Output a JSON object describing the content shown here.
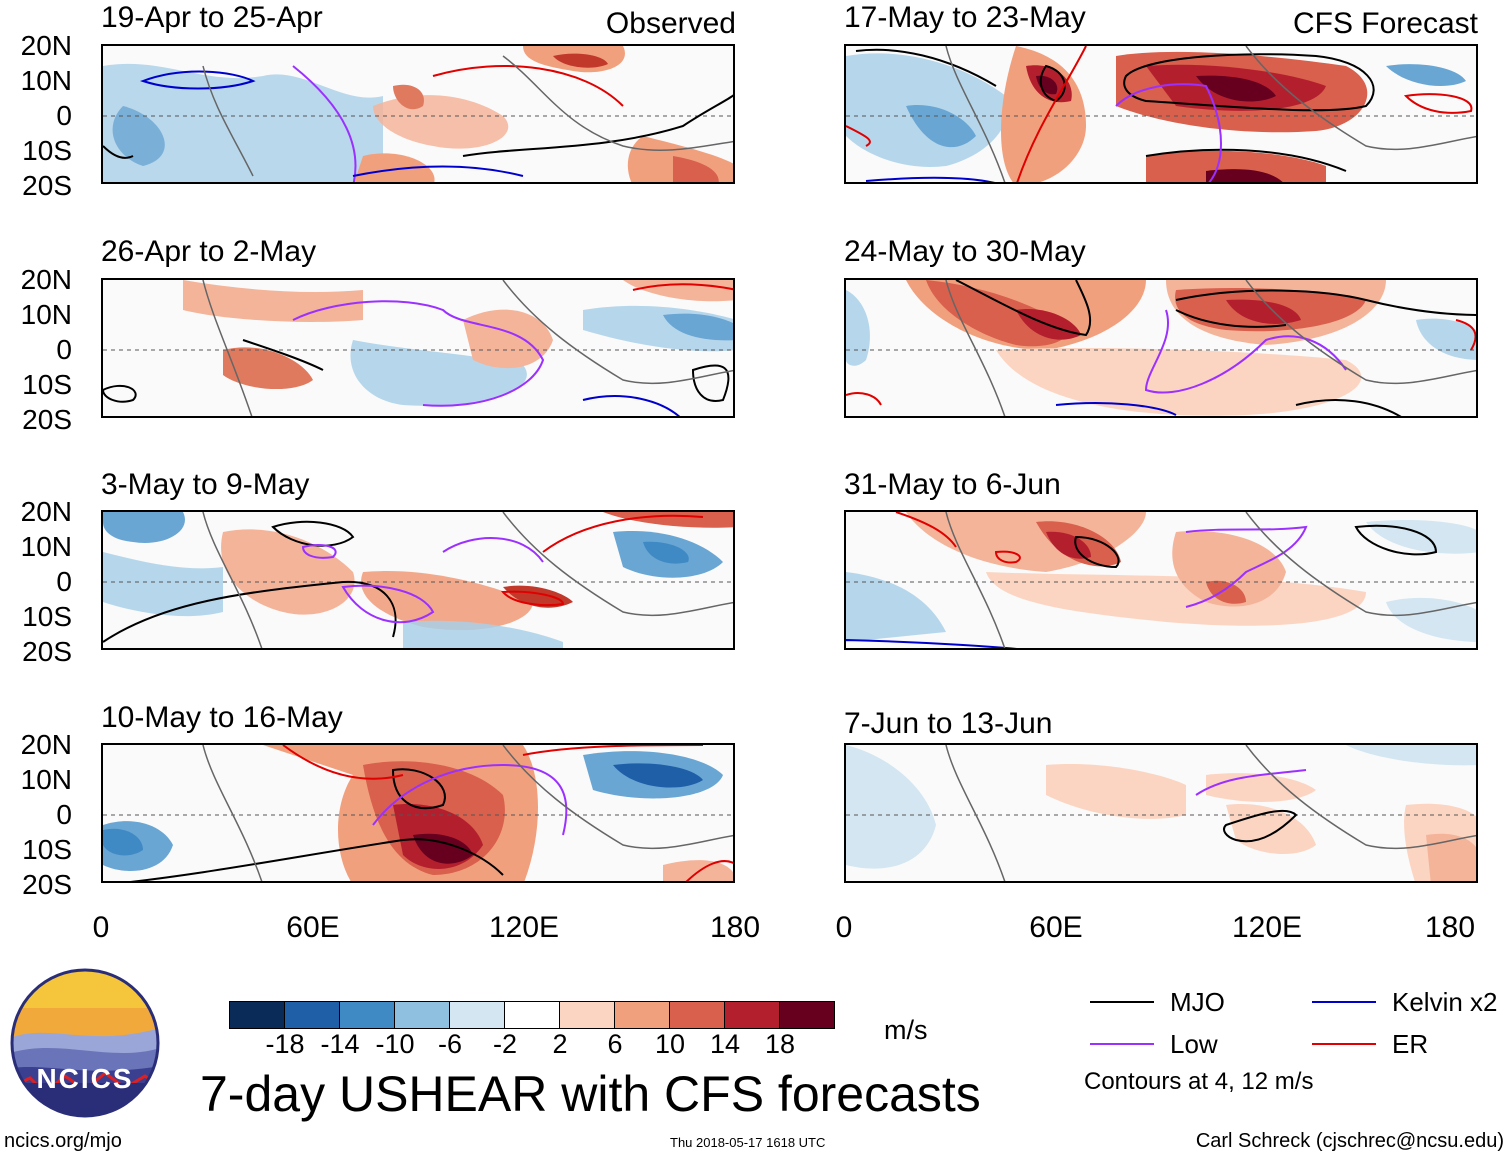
{
  "labels": {
    "observed": "Observed",
    "forecast": "CFS Forecast"
  },
  "panels": {
    "obs": [
      {
        "period": "19-Apr to 25-Apr"
      },
      {
        "period": "26-Apr to 2-May"
      },
      {
        "period": "3-May to 9-May"
      },
      {
        "period": "10-May to 16-May"
      }
    ],
    "fcst": [
      {
        "period": "17-May to 23-May"
      },
      {
        "period": "24-May to 30-May"
      },
      {
        "period": "31-May to 6-Jun"
      },
      {
        "period": "7-Jun to 13-Jun"
      }
    ]
  },
  "axes": {
    "lat_labels": [
      "20N",
      "10N",
      "0",
      "10S",
      "20S"
    ],
    "lon_labels": [
      "0",
      "60E",
      "120E",
      "180"
    ]
  },
  "colorbar": {
    "ticks": [
      "-18",
      "-14",
      "-10",
      "-6",
      "-2",
      "2",
      "6",
      "10",
      "14",
      "18"
    ],
    "colors": [
      "#0a2b57",
      "#1f5fa8",
      "#3f8ac4",
      "#8fc0df",
      "#d3e6f1",
      "#ffffff",
      "#fbd5c2",
      "#f1a07e",
      "#d8604d",
      "#b41f2e",
      "#67001f"
    ],
    "units": "m/s"
  },
  "legend": {
    "items": [
      {
        "label": "MJO",
        "color": "#000000"
      },
      {
        "label": "Kelvin x2",
        "color": "#0000cc"
      },
      {
        "label": "Low",
        "color": "#9b30ff"
      },
      {
        "label": "ER",
        "color": "#e00000"
      }
    ],
    "note": "Contours at 4, 12 m/s"
  },
  "logo": {
    "text": "NCICS"
  },
  "footer": {
    "title": "7-day USHEAR with CFS forecasts",
    "url": "ncics.org/mjo",
    "timestamp": "Thu 2018-05-17 1618 UTC",
    "credit": "Carl Schreck (cjschrec@ncsu.edu)"
  }
}
